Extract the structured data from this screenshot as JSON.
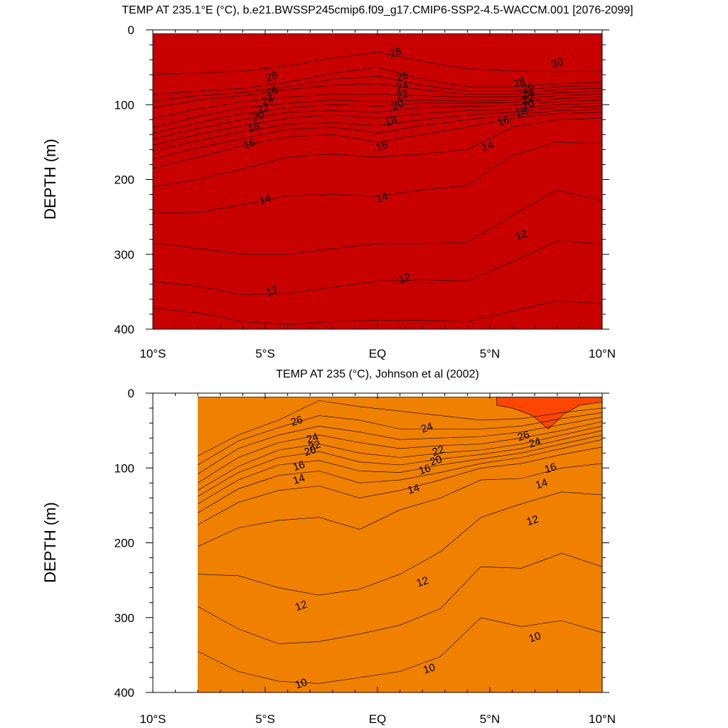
{
  "chart_data": [
    {
      "type": "contour",
      "title": "TEMP AT 235.1°E (°C), b.e21.BWSSP245cmip6.f09_g17.CMIP6-SSP2-4.5-WACCM.001 [2076-2099]",
      "xlabel": "",
      "ylabel": "DEPTH (m)",
      "xlim": [
        -10,
        10
      ],
      "ylim": [
        0,
        400
      ],
      "y_inverted": true,
      "xticks": [
        -10,
        -5,
        0,
        5,
        10
      ],
      "xtick_labels": [
        "10°S",
        "5°S",
        "EQ",
        "5°N",
        "10°N"
      ],
      "yticks": [
        0,
        100,
        200,
        300,
        400
      ],
      "ytick_labels": [
        "0",
        "100",
        "200",
        "300",
        "400"
      ],
      "data_x_range": [
        -10,
        10
      ],
      "colormap": "rainbow",
      "isotherms": [
        {
          "level": 10,
          "color": "#1464f0",
          "depths": [
            400,
            400,
            400,
            400,
            400,
            400,
            400,
            400,
            400,
            400,
            400
          ]
        },
        {
          "level": 11,
          "color": "#1e96fa",
          "depths": [
            372,
            378,
            390,
            394,
            390,
            388,
            388,
            390,
            376,
            362,
            366
          ]
        },
        {
          "level": 12,
          "color": "#14b4ff",
          "depths": [
            336,
            343,
            354,
            352,
            344,
            336,
            334,
            336,
            310,
            282,
            286
          ]
        },
        {
          "level": 13,
          "color": "#1ecdff",
          "depths": [
            285,
            292,
            300,
            300,
            292,
            286,
            286,
            284,
            248,
            214,
            228
          ]
        },
        {
          "level": 14,
          "color": "#3ceefa",
          "depths": [
            245,
            244,
            234,
            222,
            220,
            222,
            214,
            208,
            168,
            150,
            152
          ]
        },
        {
          "level": 15,
          "color": "#00ffff",
          "depths": [
            210,
            200,
            186,
            170,
            166,
            170,
            166,
            160,
            130,
            120,
            118
          ]
        },
        {
          "level": 16,
          "color": "#00fa9a",
          "depths": [
            185,
            170,
            155,
            143,
            140,
            150,
            140,
            130,
            118,
            112,
            110
          ]
        },
        {
          "level": 17,
          "color": "#14e614",
          "depths": [
            172,
            158,
            145,
            133,
            130,
            138,
            128,
            120,
            114,
            108,
            106
          ]
        },
        {
          "level": 18,
          "color": "#a0fa00",
          "depths": [
            162,
            148,
            136,
            126,
            124,
            128,
            120,
            114,
            110,
            104,
            102
          ]
        },
        {
          "level": 19,
          "color": "#e6f500",
          "depths": [
            154,
            140,
            128,
            118,
            114,
            118,
            112,
            108,
            106,
            100,
            98
          ]
        },
        {
          "level": 20,
          "color": "#ffe600",
          "depths": [
            146,
            132,
            120,
            110,
            108,
            110,
            104,
            102,
            101,
            96,
            94
          ]
        },
        {
          "level": 21,
          "color": "#ffc800",
          "depths": [
            138,
            124,
            112,
            104,
            100,
            102,
            98,
            98,
            97,
            92,
            90
          ]
        },
        {
          "level": 22,
          "color": "#ffaa00",
          "depths": [
            130,
            116,
            104,
            98,
            94,
            96,
            94,
            95,
            94,
            88,
            86
          ]
        },
        {
          "level": 24,
          "color": "#ff9100",
          "depths": [
            118,
            106,
            96,
            90,
            86,
            86,
            88,
            90,
            90,
            84,
            82
          ]
        },
        {
          "level": 26,
          "color": "#ff7800",
          "depths": [
            104,
            94,
            88,
            80,
            74,
            72,
            80,
            86,
            86,
            80,
            78
          ]
        },
        {
          "level": 27,
          "color": "#ff5000",
          "depths": [
            95,
            88,
            84,
            76,
            66,
            62,
            74,
            82,
            82,
            76,
            74
          ]
        },
        {
          "level": 28,
          "color": "#ff1e00",
          "depths": [
            86,
            82,
            78,
            70,
            58,
            50,
            66,
            76,
            76,
            72,
            70
          ]
        },
        {
          "level": 29,
          "color": "#e60000",
          "depths": [
            60,
            58,
            55,
            48,
            38,
            30,
            42,
            52,
            55,
            56,
            55
          ]
        },
        {
          "level": 30,
          "color": "#c80000",
          "depths": [
            5,
            5,
            5,
            5,
            5,
            5,
            5,
            5,
            5,
            5,
            5
          ]
        }
      ],
      "contour_labels": [
        {
          "text": "28",
          "x": 0.8,
          "y": 30
        },
        {
          "text": "30",
          "x": 8.0,
          "y": 44
        },
        {
          "text": "28",
          "x": -4.7,
          "y": 62
        },
        {
          "text": "28",
          "x": 6.3,
          "y": 70
        },
        {
          "text": "26",
          "x": 1.1,
          "y": 62
        },
        {
          "text": "24",
          "x": 1.1,
          "y": 75
        },
        {
          "text": "22",
          "x": 1.1,
          "y": 87
        },
        {
          "text": "20",
          "x": 0.9,
          "y": 100
        },
        {
          "text": "18",
          "x": 0.6,
          "y": 122
        },
        {
          "text": "16",
          "x": 0.2,
          "y": 155
        },
        {
          "text": "26",
          "x": -4.7,
          "y": 82
        },
        {
          "text": "24",
          "x": -4.9,
          "y": 94
        },
        {
          "text": "22",
          "x": -5.1,
          "y": 105
        },
        {
          "text": "20",
          "x": -5.3,
          "y": 115
        },
        {
          "text": "18",
          "x": -5.5,
          "y": 130
        },
        {
          "text": "16",
          "x": -5.7,
          "y": 152
        },
        {
          "text": "26",
          "x": 6.7,
          "y": 77
        },
        {
          "text": "24",
          "x": 6.7,
          "y": 85
        },
        {
          "text": "22",
          "x": 6.7,
          "y": 92
        },
        {
          "text": "20",
          "x": 6.7,
          "y": 100
        },
        {
          "text": "18",
          "x": 6.4,
          "y": 110
        },
        {
          "text": "16",
          "x": 5.6,
          "y": 122
        },
        {
          "text": "14",
          "x": 4.9,
          "y": 155
        },
        {
          "text": "14",
          "x": -5.0,
          "y": 227
        },
        {
          "text": "14",
          "x": 0.2,
          "y": 224
        },
        {
          "text": "12",
          "x": 6.4,
          "y": 274
        },
        {
          "text": "12",
          "x": 1.2,
          "y": 332
        },
        {
          "text": "12",
          "x": -4.7,
          "y": 349
        }
      ]
    },
    {
      "type": "contour",
      "title": "TEMP AT 235 (°C), Johnson et al (2002)",
      "xlabel": "",
      "ylabel": "DEPTH (m)",
      "xlim": [
        -10,
        10
      ],
      "ylim": [
        0,
        400
      ],
      "y_inverted": true,
      "xticks": [
        -10,
        -5,
        0,
        5,
        10
      ],
      "xtick_labels": [
        "10°S",
        "5°S",
        "EQ",
        "5°N",
        "10°N"
      ],
      "yticks": [
        0,
        100,
        200,
        300,
        400
      ],
      "ytick_labels": [
        "0",
        "100",
        "200",
        "300",
        "400"
      ],
      "data_x_range": [
        -8,
        10
      ],
      "colormap": "rainbow",
      "isotherms": [
        {
          "level": 9,
          "color": "#1464f0",
          "depths": [
            400,
            400,
            400,
            400,
            400,
            400,
            400,
            400,
            400,
            400,
            400
          ]
        },
        {
          "level": 10,
          "color": "#1e96fa",
          "depths": [
            345,
            372,
            385,
            388,
            380,
            372,
            352,
            300,
            312,
            304,
            320
          ]
        },
        {
          "level": 11,
          "color": "#14b4ff",
          "depths": [
            285,
            315,
            335,
            332,
            322,
            310,
            288,
            232,
            234,
            214,
            232
          ]
        },
        {
          "level": 12,
          "color": "#1ecdff",
          "depths": [
            242,
            244,
            260,
            270,
            262,
            242,
            212,
            166,
            148,
            132,
            136
          ]
        },
        {
          "level": 13,
          "color": "#3ceefa",
          "depths": [
            205,
            180,
            170,
            166,
            182,
            156,
            140,
            116,
            114,
            100,
            94
          ]
        },
        {
          "level": 14,
          "color": "#00ffff",
          "depths": [
            176,
            146,
            130,
            124,
            140,
            130,
            116,
            100,
            94,
            82,
            72
          ]
        },
        {
          "level": 15,
          "color": "#00fa9a",
          "depths": [
            160,
            128,
            110,
            104,
            120,
            116,
            106,
            94,
            86,
            74,
            62
          ]
        },
        {
          "level": 16,
          "color": "#14e614",
          "depths": [
            148,
            116,
            96,
            90,
            104,
            106,
            96,
            88,
            80,
            68,
            56
          ]
        },
        {
          "level": 17,
          "color": "#a0fa00",
          "depths": [
            138,
            106,
            86,
            78,
            92,
            96,
            88,
            82,
            74,
            62,
            50
          ]
        },
        {
          "level": 18,
          "color": "#e6f500",
          "depths": [
            130,
            98,
            76,
            68,
            80,
            86,
            80,
            76,
            68,
            56,
            44
          ]
        },
        {
          "level": 20,
          "color": "#ffe600",
          "depths": [
            120,
            86,
            66,
            56,
            66,
            74,
            70,
            68,
            60,
            50,
            38
          ]
        },
        {
          "level": 22,
          "color": "#ffc800",
          "depths": [
            108,
            74,
            56,
            44,
            52,
            62,
            60,
            58,
            52,
            42,
            32
          ]
        },
        {
          "level": 24,
          "color": "#ffaa00",
          "depths": [
            96,
            64,
            46,
            30,
            36,
            48,
            48,
            48,
            44,
            34,
            26
          ]
        },
        {
          "level": 26,
          "color": "#ff9100",
          "depths": [
            84,
            56,
            36,
            10,
            18,
            24,
            30,
            36,
            34,
            26,
            20
          ]
        },
        {
          "level": 27,
          "color": "#f08000",
          "depths": [
            5,
            5,
            5,
            5,
            5,
            5,
            5,
            5,
            5,
            5,
            5
          ]
        },
        {
          "level": 28,
          "color": "#ff4600",
          "hot_patch": true
        }
      ],
      "contour_labels": [
        {
          "text": "26",
          "x": -3.6,
          "y": 37
        },
        {
          "text": "24",
          "x": -2.9,
          "y": 60
        },
        {
          "text": "22",
          "x": -2.8,
          "y": 70
        },
        {
          "text": "20",
          "x": -3.0,
          "y": 77
        },
        {
          "text": "16",
          "x": -3.5,
          "y": 97
        },
        {
          "text": "14",
          "x": -3.5,
          "y": 115
        },
        {
          "text": "24",
          "x": 2.2,
          "y": 46
        },
        {
          "text": "22",
          "x": 2.7,
          "y": 77
        },
        {
          "text": "20",
          "x": 2.6,
          "y": 90
        },
        {
          "text": "16",
          "x": 2.1,
          "y": 102
        },
        {
          "text": "14",
          "x": 1.6,
          "y": 128
        },
        {
          "text": "26",
          "x": 6.5,
          "y": 57
        },
        {
          "text": "24",
          "x": 7.0,
          "y": 66
        },
        {
          "text": "16",
          "x": 7.7,
          "y": 100
        },
        {
          "text": "14",
          "x": 7.3,
          "y": 121
        },
        {
          "text": "12",
          "x": 6.9,
          "y": 170
        },
        {
          "text": "12",
          "x": 2.0,
          "y": 252
        },
        {
          "text": "12",
          "x": -3.4,
          "y": 284
        },
        {
          "text": "10",
          "x": 2.3,
          "y": 368
        },
        {
          "text": "10",
          "x": -3.4,
          "y": 388
        },
        {
          "text": "10",
          "x": 7.0,
          "y": 326
        }
      ]
    }
  ]
}
